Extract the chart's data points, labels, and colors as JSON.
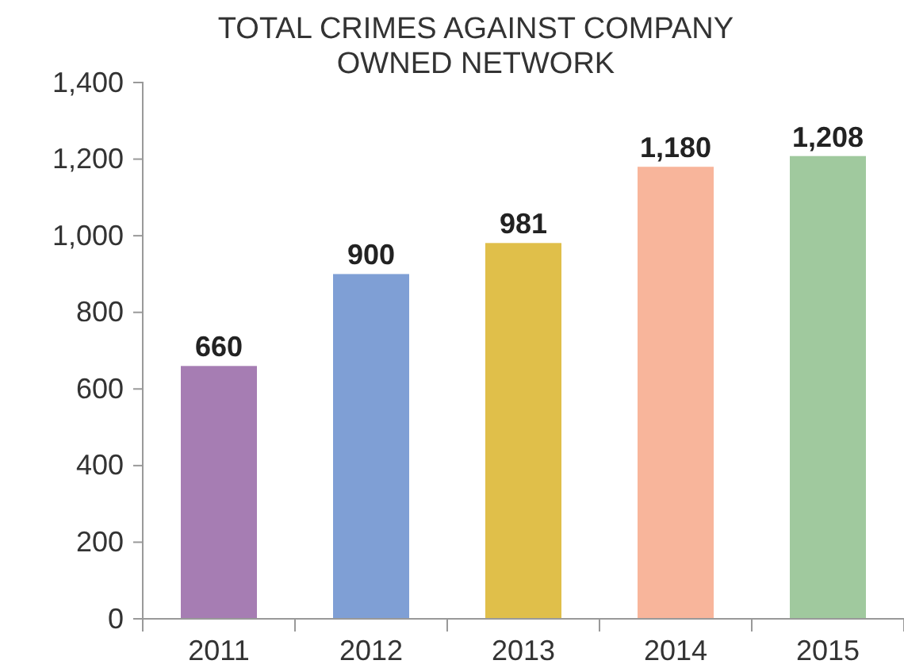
{
  "chart_data": {
    "type": "bar",
    "title": "TOTAL CRIMES AGAINST COMPANY OWNED NETWORK",
    "categories": [
      "2011",
      "2012",
      "2013",
      "2014",
      "2015"
    ],
    "values": [
      660,
      900,
      981,
      1180,
      1208
    ],
    "colors": [
      "#a67db3",
      "#7f9fd5",
      "#e0bf4a",
      "#f8b59b",
      "#a0c99e"
    ],
    "value_labels": [
      "660",
      "900",
      "981",
      "1,180",
      "1,208"
    ],
    "ylim": [
      0,
      1400
    ],
    "yticks": [
      {
        "value": 0,
        "label": "0"
      },
      {
        "value": 200,
        "label": "200"
      },
      {
        "value": 400,
        "label": "400"
      },
      {
        "value": 600,
        "label": "600"
      },
      {
        "value": 800,
        "label": "800"
      },
      {
        "value": 1000,
        "label": "1,000"
      },
      {
        "value": 1200,
        "label": "1,200"
      },
      {
        "value": 1400,
        "label": "1,400"
      }
    ],
    "grid": false
  }
}
